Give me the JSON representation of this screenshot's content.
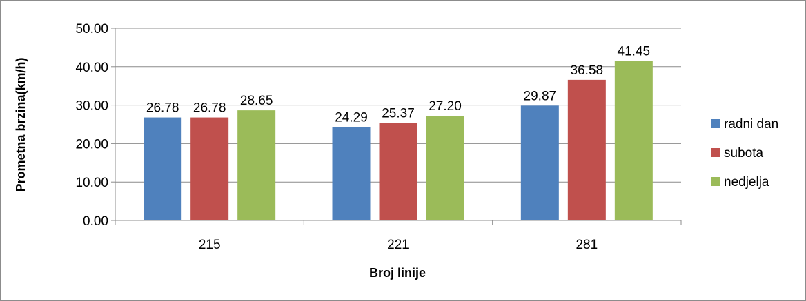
{
  "chart_data": {
    "type": "bar",
    "categories": [
      "215",
      "221",
      "281"
    ],
    "series": [
      {
        "name": "radni dan",
        "color": "#4F81BD",
        "values": [
          26.78,
          24.29,
          29.87
        ],
        "labels": [
          "26.78",
          "24.29",
          "29.87"
        ]
      },
      {
        "name": "subota",
        "color": "#C0504D",
        "values": [
          26.78,
          25.37,
          36.58
        ],
        "labels": [
          "26.78",
          "25.37",
          "36.58"
        ]
      },
      {
        "name": "nedjelja",
        "color": "#9BBB59",
        "values": [
          28.65,
          27.2,
          41.45
        ],
        "labels": [
          "28.65",
          "27.20",
          "41.45"
        ]
      }
    ],
    "xlabel": "Broj linije",
    "ylabel": "Prometna brzina(km/h)",
    "ylim": [
      0,
      50
    ],
    "yticks": [
      0,
      10,
      20,
      30,
      40,
      50
    ],
    "ytick_labels": [
      "0.00",
      "10.00",
      "20.00",
      "30.00",
      "40.00",
      "50.00"
    ],
    "grid": true,
    "legend_position": "right"
  }
}
